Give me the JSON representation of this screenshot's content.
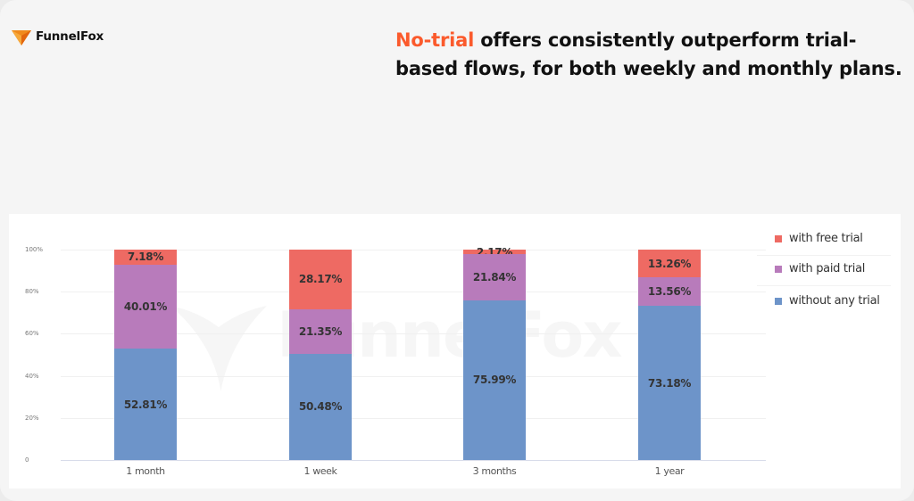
{
  "brand": {
    "name": "FunnelFox",
    "logo_icon": "funnelfox-logo-icon"
  },
  "headline": {
    "accent": "No-trial",
    "rest": " offers consistently outperform trial-based flows, for both weekly and monthly plans.",
    "accent_color": "#fb5a2c"
  },
  "watermark": "FunnelFox",
  "colors": {
    "free_trial": "#ee6a63",
    "paid_trial": "#b87bbb",
    "no_trial": "#6d94c9"
  },
  "legend": [
    {
      "label": "with free trial",
      "color": "#ee6a63"
    },
    {
      "label": "with paid trial",
      "color": "#b87bbb"
    },
    {
      "label": "without any trial",
      "color": "#6d94c9"
    }
  ],
  "chart_data": {
    "type": "bar",
    "stacked": true,
    "title": "",
    "xlabel": "",
    "ylabel": "",
    "ylim": [
      0,
      100
    ],
    "y_ticks": [
      "0",
      "20%",
      "40%",
      "60%",
      "80%",
      "100%"
    ],
    "grid": true,
    "legend_position": "right",
    "categories": [
      "1 month",
      "1 week",
      "3 months",
      "1 year"
    ],
    "series": [
      {
        "name": "without any trial",
        "color": "#6d94c9",
        "values": [
          52.81,
          50.48,
          75.99,
          73.18
        ],
        "labels": [
          "52.81%",
          "50.48%",
          "75.99%",
          "73.18%"
        ]
      },
      {
        "name": "with paid trial",
        "color": "#b87bbb",
        "values": [
          40.01,
          21.35,
          21.84,
          13.56
        ],
        "labels": [
          "40.01%",
          "21.35%",
          "21.84%",
          "13.56%"
        ]
      },
      {
        "name": "with free trial",
        "color": "#ee6a63",
        "values": [
          7.18,
          28.17,
          2.17,
          13.26
        ],
        "labels": [
          "7.18%",
          "28.17%",
          "2.17%",
          "13.26%"
        ]
      }
    ]
  }
}
